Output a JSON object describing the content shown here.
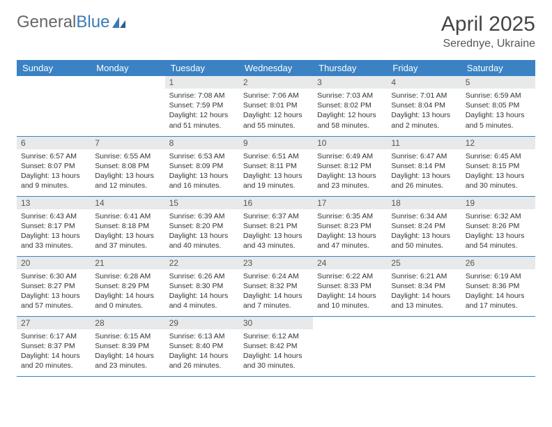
{
  "brand": {
    "part1": "General",
    "part2": "Blue"
  },
  "title": "April 2025",
  "location": "Serednye, Ukraine",
  "colors": {
    "header_bg": "#3a82c4",
    "header_fg": "#ffffff",
    "daynum_bg": "#e8e9ea",
    "rule": "#3a82c4",
    "brand_blue": "#3a7ab8"
  },
  "weekdays": [
    "Sunday",
    "Monday",
    "Tuesday",
    "Wednesday",
    "Thursday",
    "Friday",
    "Saturday"
  ],
  "grid": [
    [
      null,
      null,
      {
        "n": "1",
        "sr": "7:08 AM",
        "ss": "7:59 PM",
        "dl": "12 hours and 51 minutes."
      },
      {
        "n": "2",
        "sr": "7:06 AM",
        "ss": "8:01 PM",
        "dl": "12 hours and 55 minutes."
      },
      {
        "n": "3",
        "sr": "7:03 AM",
        "ss": "8:02 PM",
        "dl": "12 hours and 58 minutes."
      },
      {
        "n": "4",
        "sr": "7:01 AM",
        "ss": "8:04 PM",
        "dl": "13 hours and 2 minutes."
      },
      {
        "n": "5",
        "sr": "6:59 AM",
        "ss": "8:05 PM",
        "dl": "13 hours and 5 minutes."
      }
    ],
    [
      {
        "n": "6",
        "sr": "6:57 AM",
        "ss": "8:07 PM",
        "dl": "13 hours and 9 minutes."
      },
      {
        "n": "7",
        "sr": "6:55 AM",
        "ss": "8:08 PM",
        "dl": "13 hours and 12 minutes."
      },
      {
        "n": "8",
        "sr": "6:53 AM",
        "ss": "8:09 PM",
        "dl": "13 hours and 16 minutes."
      },
      {
        "n": "9",
        "sr": "6:51 AM",
        "ss": "8:11 PM",
        "dl": "13 hours and 19 minutes."
      },
      {
        "n": "10",
        "sr": "6:49 AM",
        "ss": "8:12 PM",
        "dl": "13 hours and 23 minutes."
      },
      {
        "n": "11",
        "sr": "6:47 AM",
        "ss": "8:14 PM",
        "dl": "13 hours and 26 minutes."
      },
      {
        "n": "12",
        "sr": "6:45 AM",
        "ss": "8:15 PM",
        "dl": "13 hours and 30 minutes."
      }
    ],
    [
      {
        "n": "13",
        "sr": "6:43 AM",
        "ss": "8:17 PM",
        "dl": "13 hours and 33 minutes."
      },
      {
        "n": "14",
        "sr": "6:41 AM",
        "ss": "8:18 PM",
        "dl": "13 hours and 37 minutes."
      },
      {
        "n": "15",
        "sr": "6:39 AM",
        "ss": "8:20 PM",
        "dl": "13 hours and 40 minutes."
      },
      {
        "n": "16",
        "sr": "6:37 AM",
        "ss": "8:21 PM",
        "dl": "13 hours and 43 minutes."
      },
      {
        "n": "17",
        "sr": "6:35 AM",
        "ss": "8:23 PM",
        "dl": "13 hours and 47 minutes."
      },
      {
        "n": "18",
        "sr": "6:34 AM",
        "ss": "8:24 PM",
        "dl": "13 hours and 50 minutes."
      },
      {
        "n": "19",
        "sr": "6:32 AM",
        "ss": "8:26 PM",
        "dl": "13 hours and 54 minutes."
      }
    ],
    [
      {
        "n": "20",
        "sr": "6:30 AM",
        "ss": "8:27 PM",
        "dl": "13 hours and 57 minutes."
      },
      {
        "n": "21",
        "sr": "6:28 AM",
        "ss": "8:29 PM",
        "dl": "14 hours and 0 minutes."
      },
      {
        "n": "22",
        "sr": "6:26 AM",
        "ss": "8:30 PM",
        "dl": "14 hours and 4 minutes."
      },
      {
        "n": "23",
        "sr": "6:24 AM",
        "ss": "8:32 PM",
        "dl": "14 hours and 7 minutes."
      },
      {
        "n": "24",
        "sr": "6:22 AM",
        "ss": "8:33 PM",
        "dl": "14 hours and 10 minutes."
      },
      {
        "n": "25",
        "sr": "6:21 AM",
        "ss": "8:34 PM",
        "dl": "14 hours and 13 minutes."
      },
      {
        "n": "26",
        "sr": "6:19 AM",
        "ss": "8:36 PM",
        "dl": "14 hours and 17 minutes."
      }
    ],
    [
      {
        "n": "27",
        "sr": "6:17 AM",
        "ss": "8:37 PM",
        "dl": "14 hours and 20 minutes."
      },
      {
        "n": "28",
        "sr": "6:15 AM",
        "ss": "8:39 PM",
        "dl": "14 hours and 23 minutes."
      },
      {
        "n": "29",
        "sr": "6:13 AM",
        "ss": "8:40 PM",
        "dl": "14 hours and 26 minutes."
      },
      {
        "n": "30",
        "sr": "6:12 AM",
        "ss": "8:42 PM",
        "dl": "14 hours and 30 minutes."
      },
      null,
      null,
      null
    ]
  ],
  "labels": {
    "sunrise": "Sunrise: ",
    "sunset": "Sunset: ",
    "daylight": "Daylight: "
  }
}
